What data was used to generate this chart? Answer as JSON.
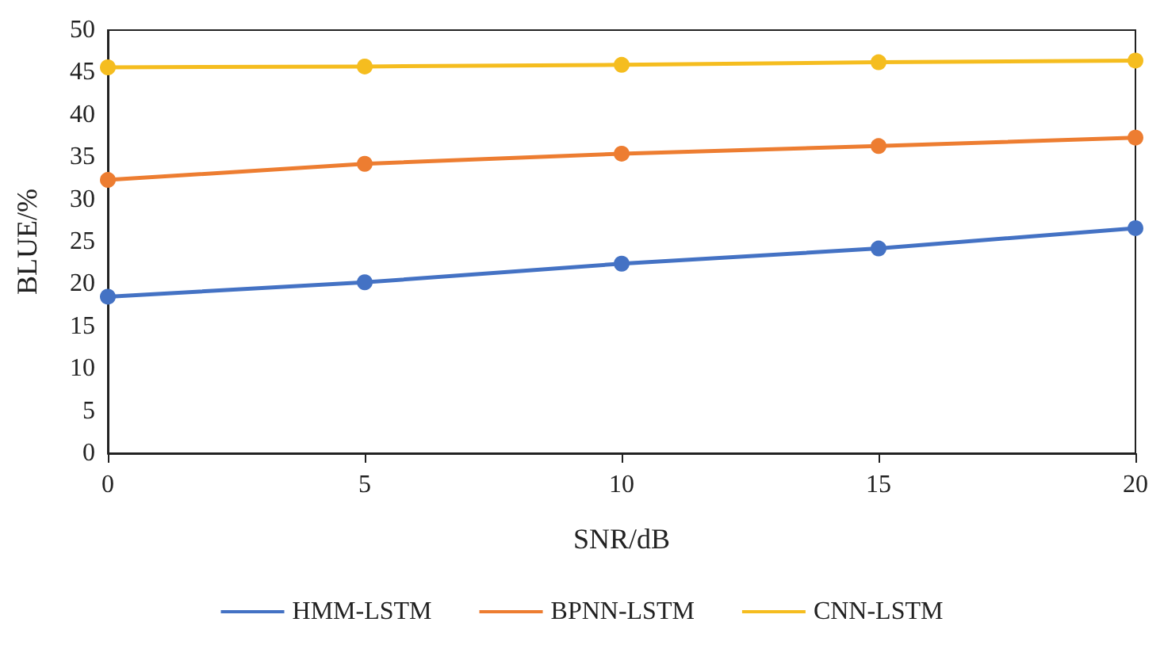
{
  "chart_data": {
    "type": "line",
    "xlabel": "SNR/dB",
    "ylabel": "BLUE/%",
    "x": [
      0,
      5,
      10,
      15,
      20
    ],
    "series": [
      {
        "name": "HMM-LSTM",
        "color": "#4472c4",
        "values": [
          18.5,
          20.2,
          22.4,
          24.2,
          26.6
        ]
      },
      {
        "name": "BPNN-LSTM",
        "color": "#ed7d31",
        "values": [
          32.3,
          34.2,
          35.4,
          36.3,
          37.3
        ]
      },
      {
        "name": "CNN-LSTM",
        "color": "#f5bd1f",
        "values": [
          45.6,
          45.7,
          45.9,
          46.2,
          46.4
        ]
      }
    ],
    "xlim": [
      0,
      20
    ],
    "xticks": [
      0,
      5,
      10,
      15,
      20
    ],
    "ylim": [
      0,
      50
    ],
    "yticks": [
      0,
      5,
      10,
      15,
      20,
      25,
      30,
      35,
      40,
      45,
      50
    ],
    "grid": false,
    "legend": "bottom",
    "marker": "circle",
    "line_style": "solid"
  }
}
